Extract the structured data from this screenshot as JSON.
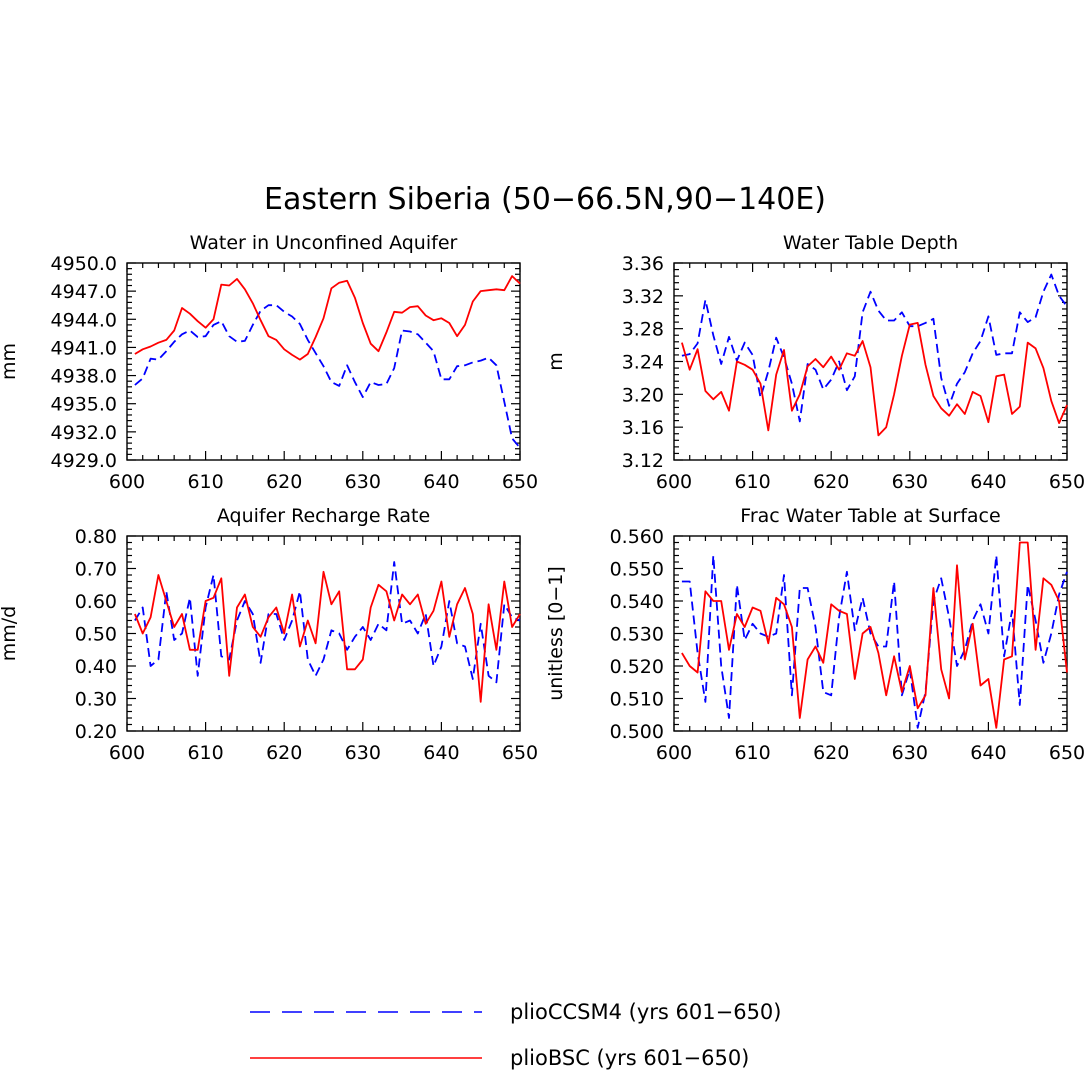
{
  "figure": {
    "title": "Eastern Siberia (50−66.5N,90−140E)"
  },
  "colors": {
    "pliocCSM4": "#0000ff",
    "plioBSC": "#ff0000",
    "axis": "#000000"
  },
  "legend": {
    "items": [
      {
        "label": "plioCCSM4 (yrs 601−650)",
        "color": "#0000ff",
        "style": "dashed"
      },
      {
        "label": "plioBSC (yrs 601−650)",
        "color": "#ff0000",
        "style": "solid"
      }
    ]
  },
  "chart_data": [
    {
      "type": "line",
      "title": "Water in Unconfined Aquifer",
      "xlabel": "",
      "ylabel": "mm",
      "xlim": [
        600,
        650
      ],
      "ylim": [
        4929.0,
        4950.0
      ],
      "xticks": [
        600,
        610,
        620,
        630,
        640,
        650
      ],
      "yticks": [
        "4929.0",
        "4932.0",
        "4935.0",
        "4938.0",
        "4941.0",
        "4944.0",
        "4947.0",
        "4950.0"
      ],
      "x": [
        601,
        602,
        603,
        604,
        605,
        606,
        607,
        608,
        609,
        610,
        611,
        612,
        613,
        614,
        615,
        616,
        617,
        618,
        619,
        620,
        621,
        622,
        623,
        624,
        625,
        626,
        627,
        628,
        629,
        630,
        631,
        632,
        633,
        634,
        635,
        636,
        637,
        638,
        639,
        640,
        641,
        642,
        643,
        644,
        645,
        646,
        647,
        648,
        649,
        650
      ],
      "series": [
        {
          "name": "plioCCSM4 (yrs 601−650)",
          "values": [
            4937.0,
            4937.7,
            4939.8,
            4939.7,
            4940.6,
            4941.6,
            4942.4,
            4942.8,
            4942.1,
            4942.2,
            4943.4,
            4943.8,
            4942.2,
            4941.6,
            4941.7,
            4943.4,
            4944.9,
            4945.5,
            4945.5,
            4944.8,
            4944.3,
            4943.5,
            4941.8,
            4940.4,
            4939.0,
            4937.3,
            4936.9,
            4939.1,
            4937.3,
            4935.7,
            4937.3,
            4937.0,
            4937.1,
            4938.8,
            4942.8,
            4942.7,
            4942.4,
            4941.5,
            4940.6,
            4937.6,
            4937.6,
            4939.0,
            4939.1,
            4939.4,
            4939.6,
            4939.9,
            4939.1,
            4935.2,
            4931.3,
            4930.3
          ]
        },
        {
          "name": "plioBSC (yrs 601−650)",
          "values": [
            4940.3,
            4940.8,
            4941.1,
            4941.5,
            4941.8,
            4942.8,
            4945.2,
            4944.6,
            4943.8,
            4943.1,
            4944.0,
            4947.7,
            4947.6,
            4948.3,
            4947.2,
            4945.7,
            4943.9,
            4942.2,
            4941.8,
            4940.8,
            4940.2,
            4939.7,
            4940.3,
            4942.1,
            4944.1,
            4947.3,
            4947.9,
            4948.1,
            4946.3,
            4943.6,
            4941.4,
            4940.6,
            4942.6,
            4944.8,
            4944.7,
            4945.3,
            4945.4,
            4944.4,
            4943.9,
            4944.1,
            4943.6,
            4942.2,
            4943.4,
            4945.9,
            4947.0,
            4947.1,
            4947.2,
            4947.1,
            4948.6,
            4947.8
          ]
        }
      ]
    },
    {
      "type": "line",
      "title": "Water Table Depth",
      "xlabel": "",
      "ylabel": "m",
      "xlim": [
        600,
        650
      ],
      "ylim": [
        3.12,
        3.36
      ],
      "xticks": [
        600,
        610,
        620,
        630,
        640,
        650
      ],
      "yticks": [
        "3.12",
        "3.16",
        "3.20",
        "3.24",
        "3.28",
        "3.32",
        "3.36"
      ],
      "x": [
        601,
        602,
        603,
        604,
        605,
        606,
        607,
        608,
        609,
        610,
        611,
        612,
        613,
        614,
        615,
        616,
        617,
        618,
        619,
        620,
        621,
        622,
        623,
        624,
        625,
        626,
        627,
        628,
        629,
        630,
        631,
        632,
        633,
        634,
        635,
        636,
        637,
        638,
        639,
        640,
        641,
        642,
        643,
        644,
        645,
        646,
        647,
        648,
        649,
        650
      ],
      "series": [
        {
          "name": "plioCCSM4 (yrs 601−650)",
          "values": [
            3.247,
            3.249,
            3.262,
            3.315,
            3.272,
            3.237,
            3.27,
            3.241,
            3.263,
            3.248,
            3.196,
            3.228,
            3.269,
            3.245,
            3.213,
            3.167,
            3.237,
            3.23,
            3.206,
            3.218,
            3.24,
            3.205,
            3.222,
            3.3,
            3.325,
            3.302,
            3.29,
            3.29,
            3.3,
            3.283,
            3.283,
            3.287,
            3.292,
            3.22,
            3.186,
            3.213,
            3.227,
            3.25,
            3.265,
            3.295,
            3.248,
            3.25,
            3.25,
            3.3,
            3.288,
            3.294,
            3.325,
            3.346,
            3.32,
            3.307
          ]
        },
        {
          "name": "plioBSC (yrs 601−650)",
          "values": [
            3.263,
            3.23,
            3.255,
            3.204,
            3.194,
            3.203,
            3.18,
            3.24,
            3.236,
            3.23,
            3.213,
            3.156,
            3.224,
            3.254,
            3.18,
            3.2,
            3.234,
            3.243,
            3.233,
            3.246,
            3.23,
            3.25,
            3.247,
            3.265,
            3.233,
            3.15,
            3.16,
            3.2,
            3.247,
            3.285,
            3.287,
            3.236,
            3.198,
            3.183,
            3.174,
            3.188,
            3.176,
            3.203,
            3.198,
            3.166,
            3.222,
            3.224,
            3.176,
            3.185,
            3.263,
            3.256,
            3.232,
            3.192,
            3.165,
            3.187
          ]
        }
      ]
    },
    {
      "type": "line",
      "title": "Aquifer Recharge Rate",
      "xlabel": "",
      "ylabel": "mm/d",
      "xlim": [
        600,
        650
      ],
      "ylim": [
        0.2,
        0.8
      ],
      "xticks": [
        600,
        610,
        620,
        630,
        640,
        650
      ],
      "yticks": [
        "0.20",
        "0.30",
        "0.40",
        "0.50",
        "0.60",
        "0.70",
        "0.80"
      ],
      "x": [
        601,
        602,
        603,
        604,
        605,
        606,
        607,
        608,
        609,
        610,
        611,
        612,
        613,
        614,
        615,
        616,
        617,
        618,
        619,
        620,
        621,
        622,
        623,
        624,
        625,
        626,
        627,
        628,
        629,
        630,
        631,
        632,
        633,
        634,
        635,
        636,
        637,
        638,
        639,
        640,
        641,
        642,
        643,
        644,
        645,
        646,
        647,
        648,
        649,
        650
      ],
      "series": [
        {
          "name": "plioCCSM4 (yrs 601−650)",
          "values": [
            0.54,
            0.58,
            0.4,
            0.42,
            0.63,
            0.48,
            0.5,
            0.61,
            0.37,
            0.58,
            0.68,
            0.43,
            0.42,
            0.54,
            0.6,
            0.56,
            0.41,
            0.56,
            0.56,
            0.48,
            0.54,
            0.63,
            0.42,
            0.37,
            0.42,
            0.51,
            0.5,
            0.45,
            0.49,
            0.52,
            0.48,
            0.53,
            0.51,
            0.72,
            0.53,
            0.54,
            0.5,
            0.56,
            0.4,
            0.46,
            0.6,
            0.47,
            0.46,
            0.36,
            0.53,
            0.37,
            0.35,
            0.59,
            0.55,
            0.54
          ]
        },
        {
          "name": "plioBSC (yrs 601−650)",
          "values": [
            0.56,
            0.5,
            0.55,
            0.68,
            0.6,
            0.52,
            0.56,
            0.45,
            0.45,
            0.6,
            0.61,
            0.67,
            0.37,
            0.58,
            0.62,
            0.52,
            0.49,
            0.55,
            0.58,
            0.5,
            0.62,
            0.46,
            0.54,
            0.47,
            0.69,
            0.59,
            0.63,
            0.39,
            0.39,
            0.42,
            0.58,
            0.65,
            0.63,
            0.54,
            0.62,
            0.59,
            0.62,
            0.53,
            0.57,
            0.66,
            0.49,
            0.59,
            0.64,
            0.56,
            0.29,
            0.59,
            0.45,
            0.66,
            0.52,
            0.56
          ]
        }
      ]
    },
    {
      "type": "line",
      "title": "Frac Water Table at Surface",
      "xlabel": "",
      "ylabel": "unitless [0−1]",
      "xlim": [
        600,
        650
      ],
      "ylim": [
        0.5,
        0.56
      ],
      "xticks": [
        600,
        610,
        620,
        630,
        640,
        650
      ],
      "yticks": [
        "0.500",
        "0.510",
        "0.520",
        "0.530",
        "0.540",
        "0.550",
        "0.560"
      ],
      "x": [
        601,
        602,
        603,
        604,
        605,
        606,
        607,
        608,
        609,
        610,
        611,
        612,
        613,
        614,
        615,
        616,
        617,
        618,
        619,
        620,
        621,
        622,
        623,
        624,
        625,
        626,
        627,
        628,
        629,
        630,
        631,
        632,
        633,
        634,
        635,
        636,
        637,
        638,
        639,
        640,
        641,
        642,
        643,
        644,
        645,
        646,
        647,
        648,
        649,
        650
      ],
      "series": [
        {
          "name": "plioCCSM4 (yrs 601−650)",
          "values": [
            0.546,
            0.546,
            0.524,
            0.509,
            0.554,
            0.52,
            0.504,
            0.545,
            0.528,
            0.533,
            0.53,
            0.529,
            0.53,
            0.548,
            0.511,
            0.544,
            0.544,
            0.532,
            0.512,
            0.511,
            0.535,
            0.549,
            0.531,
            0.541,
            0.53,
            0.526,
            0.526,
            0.546,
            0.511,
            0.519,
            0.501,
            0.512,
            0.54,
            0.547,
            0.535,
            0.52,
            0.525,
            0.534,
            0.539,
            0.53,
            0.554,
            0.523,
            0.537,
            0.508,
            0.545,
            0.534,
            0.521,
            0.53,
            0.542,
            0.549
          ]
        },
        {
          "name": "plioBSC (yrs 601−650)",
          "values": [
            0.524,
            0.52,
            0.518,
            0.543,
            0.54,
            0.54,
            0.525,
            0.536,
            0.532,
            0.538,
            0.537,
            0.527,
            0.541,
            0.539,
            0.532,
            0.504,
            0.522,
            0.526,
            0.521,
            0.539,
            0.537,
            0.536,
            0.516,
            0.53,
            0.532,
            0.524,
            0.511,
            0.523,
            0.512,
            0.52,
            0.507,
            0.511,
            0.544,
            0.519,
            0.51,
            0.551,
            0.522,
            0.533,
            0.514,
            0.516,
            0.501,
            0.522,
            0.523,
            0.558,
            0.558,
            0.525,
            0.547,
            0.545,
            0.54,
            0.518
          ]
        }
      ]
    }
  ]
}
